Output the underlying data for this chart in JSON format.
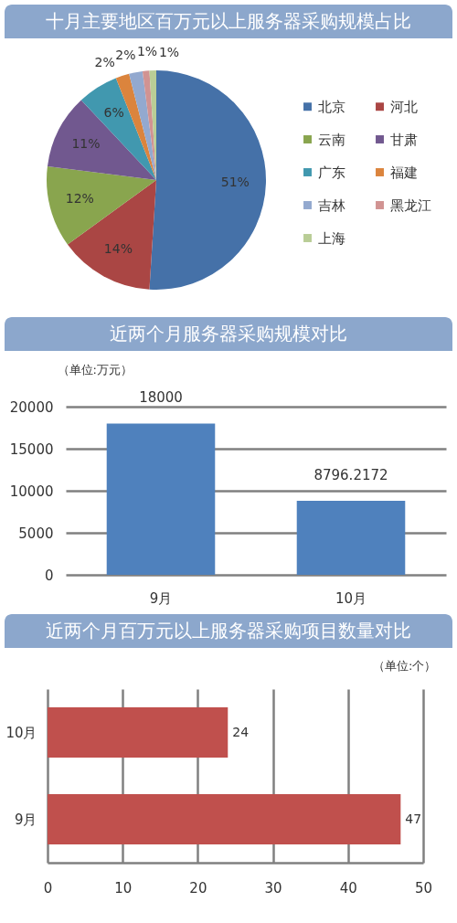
{
  "chart_data": [
    {
      "type": "pie",
      "title": "十月主要地区百万元以上服务器采购规模占比",
      "categories": [
        "北京",
        "河北",
        "云南",
        "甘肃",
        "广东",
        "福建",
        "吉林",
        "黑龙江",
        "上海"
      ],
      "values": [
        51,
        14,
        12,
        11,
        6,
        2,
        2,
        1,
        1
      ],
      "colors": [
        "#4571a8",
        "#aa4644",
        "#89a54e",
        "#71588f",
        "#4198af",
        "#db843d",
        "#93a9cf",
        "#d19392",
        "#b9cd96"
      ],
      "value_labels": [
        "51%",
        "14%",
        "12%",
        "11%",
        "6%",
        "2%",
        "2%",
        "1%",
        "1%"
      ],
      "legend": "right"
    },
    {
      "type": "bar",
      "title": "近两个月服务器采购规模对比",
      "ylabel": "（单位:万元）",
      "categories": [
        "9月",
        "10月"
      ],
      "values": [
        18000,
        8796.2172
      ],
      "color": "#4f81bd",
      "ylim": [
        0,
        20000
      ],
      "yticks": [
        0,
        5000,
        10000,
        15000,
        20000
      ],
      "grid": "y",
      "data_labels": true
    },
    {
      "type": "bar",
      "orientation": "horizontal",
      "title": "近两个月百万元以上服务器采购项目数量对比",
      "xlabel": "（单位:个）",
      "categories": [
        "10月",
        "9月"
      ],
      "values": [
        24,
        47
      ],
      "color": "#c0504d",
      "xlim": [
        0,
        50
      ],
      "xticks": [
        0,
        10,
        20,
        30,
        40,
        50
      ],
      "grid": "x",
      "data_labels": true
    }
  ]
}
